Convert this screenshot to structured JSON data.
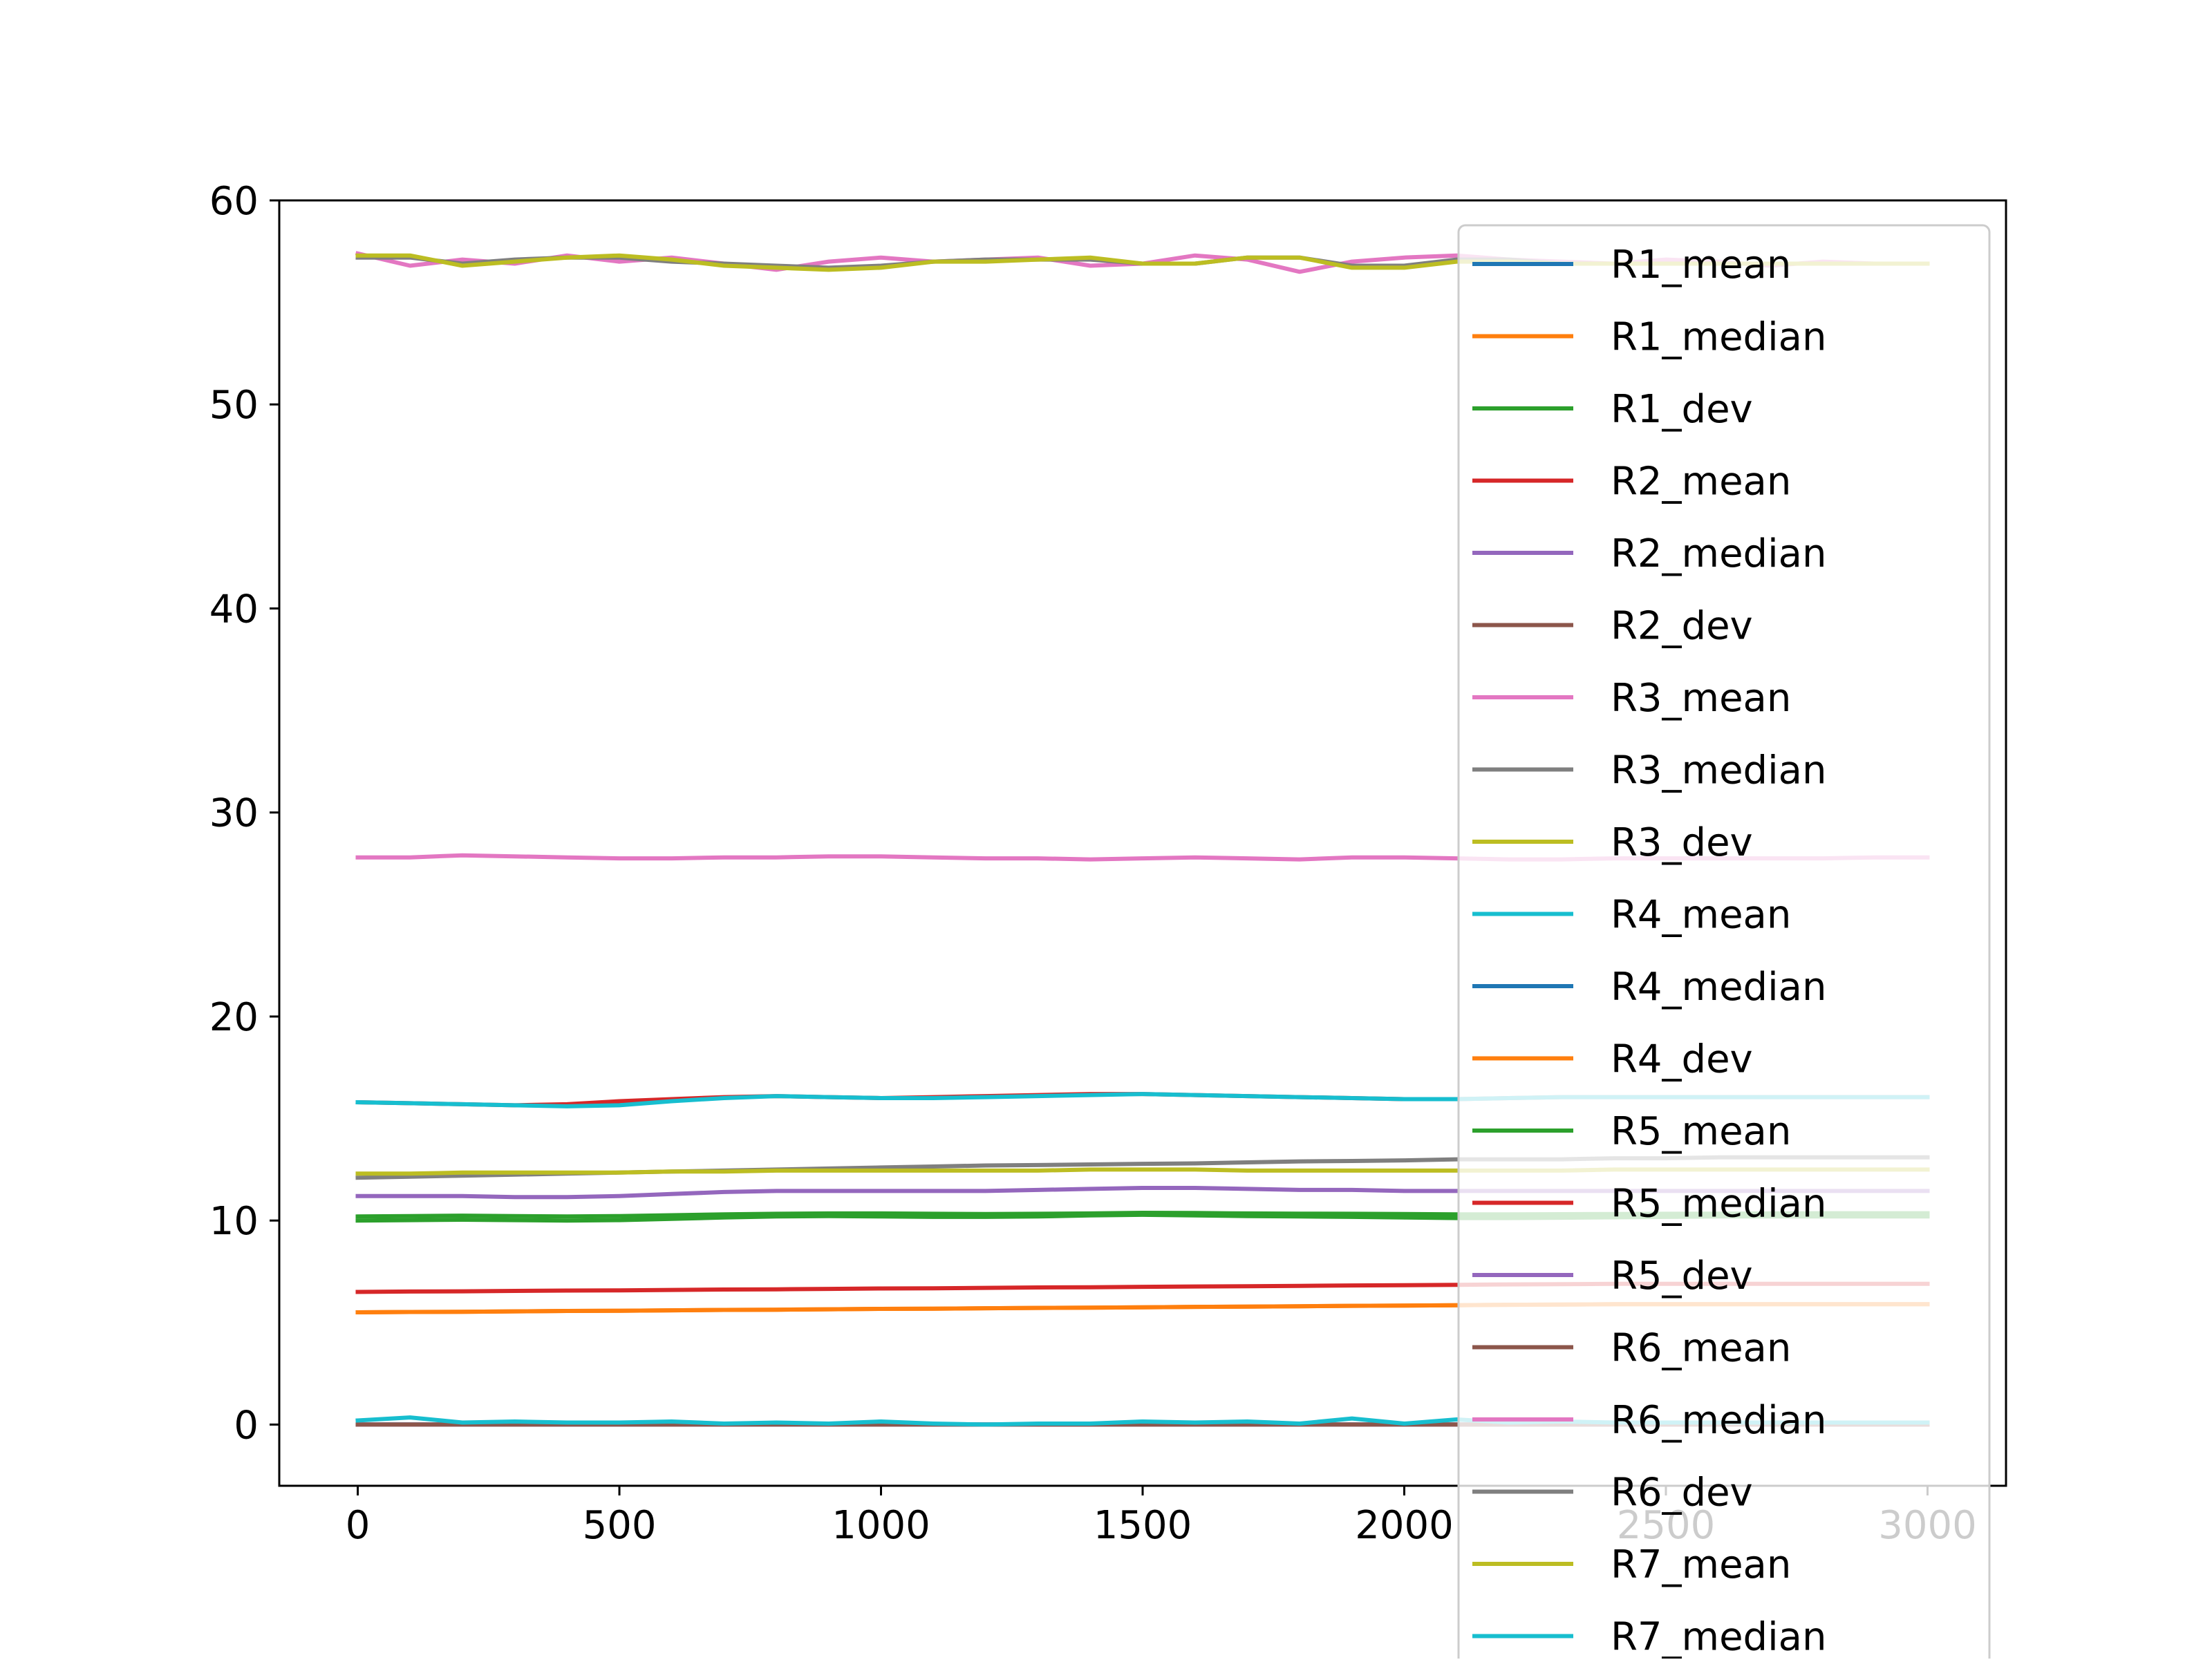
{
  "chart_data": {
    "type": "line",
    "title": "",
    "xlabel": "",
    "ylabel": "",
    "xlim": [
      -150,
      3150
    ],
    "ylim": [
      -3,
      60
    ],
    "xticks": [
      0,
      500,
      1000,
      1500,
      2000,
      2500,
      3000
    ],
    "yticks": [
      0,
      10,
      20,
      30,
      40,
      50,
      60
    ],
    "xtick_labels": [
      "0",
      "500",
      "1000",
      "1500",
      "2000",
      "2500",
      "3000"
    ],
    "ytick_labels": [
      "0",
      "10",
      "20",
      "30",
      "40",
      "50",
      "60"
    ],
    "grid": false,
    "legend_position": "right, overlapping the plot and extending past the bottom of the figure",
    "x": [
      0,
      100,
      200,
      300,
      400,
      500,
      600,
      700,
      800,
      900,
      1000,
      1100,
      1200,
      1300,
      1400,
      1500,
      1600,
      1700,
      1800,
      1900,
      2000,
      2100,
      2200,
      2300,
      2400,
      2500,
      2600,
      2700,
      2800,
      2900,
      3000
    ],
    "series": [
      {
        "name": "R1_mean",
        "color": "#1f77b4",
        "values": [
          0,
          0,
          0,
          0,
          0,
          0,
          0,
          0,
          0,
          0,
          0,
          0,
          0,
          0,
          0,
          0,
          0,
          0,
          0,
          0,
          0,
          0,
          0,
          0,
          0,
          0,
          0,
          0,
          0,
          0,
          0
        ]
      },
      {
        "name": "R1_median",
        "color": "#ff7f0e",
        "values": [
          5.5,
          5.52,
          5.53,
          5.55,
          5.57,
          5.58,
          5.6,
          5.62,
          5.63,
          5.65,
          5.67,
          5.68,
          5.7,
          5.72,
          5.73,
          5.75,
          5.77,
          5.78,
          5.8,
          5.82,
          5.83,
          5.85,
          5.87,
          5.88,
          5.9,
          5.9,
          5.9,
          5.9,
          5.9,
          5.9,
          5.9
        ]
      },
      {
        "name": "R1_dev",
        "color": "#2ca02c",
        "values": [
          10.2,
          10.22,
          10.24,
          10.22,
          10.2,
          10.22,
          10.26,
          10.3,
          10.33,
          10.35,
          10.35,
          10.33,
          10.32,
          10.33,
          10.35,
          10.38,
          10.37,
          10.35,
          10.34,
          10.33,
          10.32,
          10.3,
          10.3,
          10.31,
          10.32,
          10.33,
          10.34,
          10.35,
          10.36,
          10.36,
          10.36
        ]
      },
      {
        "name": "R2_mean",
        "color": "#d62728",
        "values": [
          15.8,
          15.75,
          15.7,
          15.65,
          15.7,
          15.85,
          15.95,
          16.05,
          16.1,
          16.05,
          16.0,
          16.05,
          16.1,
          16.15,
          16.2,
          16.2,
          16.15,
          16.1,
          16.05,
          16.0,
          15.95,
          15.95,
          16.0,
          16.05,
          16.05,
          16.05,
          16.05,
          16.05,
          16.05,
          16.05,
          16.05
        ]
      },
      {
        "name": "R2_median",
        "color": "#9467bd",
        "values": [
          11.2,
          11.2,
          11.2,
          11.15,
          11.15,
          11.2,
          11.3,
          11.4,
          11.45,
          11.45,
          11.45,
          11.45,
          11.45,
          11.5,
          11.55,
          11.6,
          11.6,
          11.55,
          11.5,
          11.5,
          11.45,
          11.45,
          11.45,
          11.45,
          11.45,
          11.45,
          11.45,
          11.45,
          11.45,
          11.45,
          11.45
        ]
      },
      {
        "name": "R2_dev",
        "color": "#8c564b",
        "values": [
          0,
          0,
          0,
          0,
          0,
          0,
          0,
          0,
          0,
          0,
          0,
          0,
          0,
          0,
          0,
          0,
          0,
          0,
          0,
          0,
          0,
          0,
          0,
          0,
          0,
          0,
          0,
          0,
          0,
          0,
          0
        ]
      },
      {
        "name": "R3_mean",
        "color": "#e377c2",
        "values": [
          57.4,
          56.8,
          57.1,
          56.9,
          57.3,
          57.0,
          57.2,
          56.9,
          56.6,
          57.0,
          57.2,
          57.0,
          57.1,
          57.2,
          56.8,
          56.9,
          57.3,
          57.1,
          56.5,
          57.0,
          57.2,
          57.3,
          57.1,
          57.0,
          56.9,
          57.1,
          57.0,
          56.8,
          57.0,
          56.9,
          56.9
        ]
      },
      {
        "name": "R3_median",
        "color": "#7f7f7f",
        "values": [
          57.2,
          57.2,
          56.9,
          57.1,
          57.2,
          57.2,
          57.0,
          56.9,
          56.8,
          56.7,
          56.8,
          57.0,
          57.1,
          57.1,
          57.1,
          56.9,
          56.9,
          57.2,
          57.2,
          56.8,
          56.8,
          57.1,
          57.1,
          56.9,
          56.9,
          56.9,
          56.9,
          56.9,
          56.9,
          56.9,
          56.9
        ]
      },
      {
        "name": "R3_dev",
        "color": "#bcbd22",
        "values": [
          57.3,
          57.3,
          56.8,
          57.0,
          57.2,
          57.3,
          57.1,
          56.8,
          56.7,
          56.6,
          56.7,
          57.0,
          57.0,
          57.1,
          57.2,
          56.9,
          56.9,
          57.2,
          57.2,
          56.7,
          56.7,
          57.0,
          57.0,
          56.9,
          56.9,
          56.9,
          56.9,
          56.9,
          56.9,
          56.9,
          56.9
        ]
      },
      {
        "name": "R4_mean",
        "color": "#17becf",
        "values": [
          15.8,
          15.75,
          15.7,
          15.65,
          15.6,
          15.65,
          15.85,
          16.0,
          16.1,
          16.05,
          16.0,
          16.0,
          16.05,
          16.1,
          16.15,
          16.2,
          16.15,
          16.1,
          16.05,
          16.0,
          15.95,
          15.95,
          16.0,
          16.05,
          16.05,
          16.05,
          16.05,
          16.05,
          16.05,
          16.05,
          16.05
        ]
      },
      {
        "name": "R4_median",
        "color": "#1f77b4",
        "values": [
          0,
          0,
          0,
          0,
          0,
          0,
          0,
          0,
          0,
          0,
          0,
          0,
          0,
          0,
          0,
          0,
          0,
          0,
          0,
          0,
          0,
          0,
          0,
          0,
          0,
          0,
          0,
          0,
          0,
          0,
          0
        ]
      },
      {
        "name": "R4_dev",
        "color": "#ff7f0e",
        "values": [
          5.5,
          5.52,
          5.53,
          5.55,
          5.57,
          5.58,
          5.6,
          5.62,
          5.63,
          5.65,
          5.67,
          5.68,
          5.7,
          5.72,
          5.73,
          5.75,
          5.77,
          5.78,
          5.8,
          5.82,
          5.83,
          5.85,
          5.87,
          5.88,
          5.9,
          5.9,
          5.9,
          5.9,
          5.9,
          5.9,
          5.9
        ]
      },
      {
        "name": "R5_mean",
        "color": "#2ca02c",
        "values": [
          10.0,
          10.02,
          10.04,
          10.02,
          10.0,
          10.02,
          10.08,
          10.15,
          10.2,
          10.22,
          10.2,
          10.18,
          10.18,
          10.2,
          10.25,
          10.28,
          10.25,
          10.22,
          10.2,
          10.18,
          10.15,
          10.12,
          10.12,
          10.14,
          10.16,
          10.18,
          10.2,
          10.2,
          10.2,
          10.2,
          10.2
        ]
      },
      {
        "name": "R5_median",
        "color": "#d62728",
        "values": [
          6.5,
          6.52,
          6.53,
          6.55,
          6.57,
          6.58,
          6.6,
          6.62,
          6.63,
          6.65,
          6.67,
          6.68,
          6.7,
          6.72,
          6.73,
          6.75,
          6.77,
          6.78,
          6.8,
          6.82,
          6.83,
          6.85,
          6.87,
          6.88,
          6.9,
          6.9,
          6.9,
          6.9,
          6.9,
          6.9,
          6.9
        ]
      },
      {
        "name": "R5_dev",
        "color": "#9467bd",
        "values": [
          0,
          0,
          0,
          0,
          0,
          0,
          0,
          0,
          0,
          0,
          0,
          0,
          0,
          0,
          0,
          0,
          0,
          0,
          0,
          0,
          0,
          0,
          0,
          0,
          0,
          0,
          0,
          0,
          0,
          0,
          0
        ]
      },
      {
        "name": "R6_mean",
        "color": "#8c564b",
        "values": [
          0,
          0,
          0,
          0,
          0,
          0,
          0,
          0,
          0,
          0,
          0,
          0,
          0,
          0,
          0,
          0,
          0,
          0,
          0,
          0,
          0,
          0,
          0,
          0,
          0,
          0,
          0,
          0,
          0,
          0,
          0
        ]
      },
      {
        "name": "R6_median",
        "color": "#e377c2",
        "values": [
          27.8,
          27.8,
          27.9,
          27.85,
          27.8,
          27.75,
          27.75,
          27.8,
          27.8,
          27.85,
          27.85,
          27.8,
          27.75,
          27.75,
          27.7,
          27.75,
          27.8,
          27.75,
          27.7,
          27.8,
          27.8,
          27.75,
          27.7,
          27.7,
          27.75,
          27.75,
          27.75,
          27.75,
          27.75,
          27.8,
          27.8
        ]
      },
      {
        "name": "R6_dev",
        "color": "#7f7f7f",
        "values": [
          12.1,
          12.15,
          12.2,
          12.25,
          12.3,
          12.35,
          12.4,
          12.45,
          12.5,
          12.55,
          12.6,
          12.65,
          12.7,
          12.72,
          12.75,
          12.78,
          12.8,
          12.85,
          12.9,
          12.92,
          12.95,
          13.0,
          13.0,
          13.0,
          13.05,
          13.05,
          13.1,
          13.1,
          13.1,
          13.1,
          13.1
        ]
      },
      {
        "name": "R7_mean",
        "color": "#bcbd22",
        "values": [
          12.3,
          12.3,
          12.35,
          12.35,
          12.35,
          12.35,
          12.4,
          12.4,
          12.45,
          12.45,
          12.45,
          12.45,
          12.45,
          12.45,
          12.5,
          12.5,
          12.5,
          12.45,
          12.45,
          12.45,
          12.45,
          12.45,
          12.45,
          12.45,
          12.5,
          12.5,
          12.5,
          12.5,
          12.5,
          12.5,
          12.5
        ]
      },
      {
        "name": "R7_median",
        "color": "#17becf",
        "values": [
          0.2,
          0.35,
          0.1,
          0.15,
          0.1,
          0.1,
          0.15,
          0.05,
          0.1,
          0.05,
          0.15,
          0.05,
          0.0,
          0.05,
          0.05,
          0.15,
          0.1,
          0.15,
          0.05,
          0.3,
          0.05,
          0.25,
          0.1,
          0.15,
          0.1,
          0.1,
          0.1,
          0.1,
          0.1,
          0.1,
          0.1
        ]
      }
    ]
  }
}
